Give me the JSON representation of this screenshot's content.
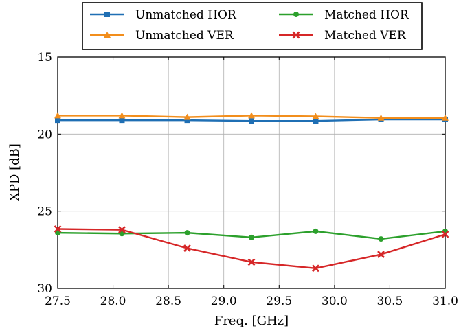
{
  "chart_data": {
    "type": "line",
    "title": "",
    "xlabel": "Freq. [GHz]",
    "ylabel": "XPD [dB]",
    "xlim": [
      27.5,
      31.0
    ],
    "ylim": [
      30,
      15
    ],
    "y_axis_inverted": true,
    "grid": true,
    "legend_placement": "top, outside plot area",
    "x_ticks": [
      "27.5",
      "28.0",
      "28.5",
      "29.0",
      "29.5",
      "30.0",
      "30.5",
      "31.0"
    ],
    "y_ticks": [
      "15",
      "20",
      "25",
      "30"
    ],
    "x": [
      27.5,
      28.08,
      28.67,
      29.25,
      29.83,
      30.42,
      31.0
    ],
    "series": [
      {
        "name": "Unmatched HOR",
        "color": "#1f6fb4",
        "marker": "square",
        "values": [
          19.1,
          19.1,
          19.1,
          19.15,
          19.15,
          19.05,
          19.05
        ]
      },
      {
        "name": "Unmatched VER",
        "color": "#f28e1c",
        "marker": "triangle",
        "values": [
          18.8,
          18.8,
          18.9,
          18.8,
          18.85,
          18.95,
          18.95
        ]
      },
      {
        "name": "Matched HOR",
        "color": "#2ca02c",
        "marker": "circle",
        "values": [
          26.4,
          26.45,
          26.4,
          26.7,
          26.3,
          26.8,
          26.3
        ]
      },
      {
        "name": "Matched VER",
        "color": "#d62728",
        "marker": "x",
        "values": [
          26.15,
          26.2,
          27.4,
          28.3,
          28.7,
          27.8,
          26.5
        ]
      }
    ]
  }
}
